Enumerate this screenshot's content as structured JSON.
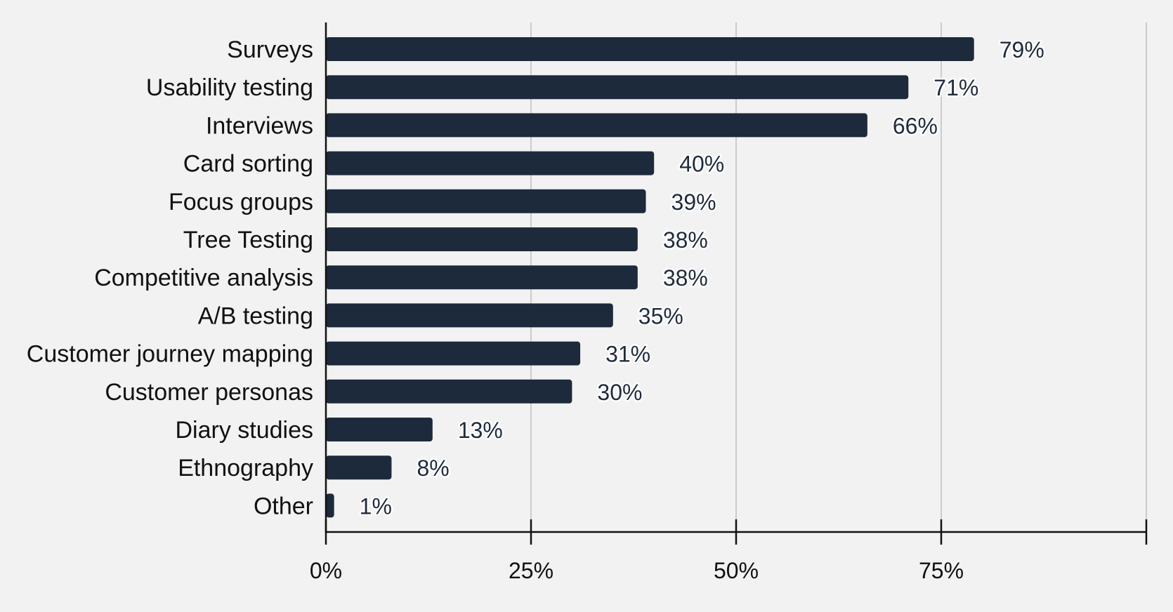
{
  "chart_data": {
    "type": "bar",
    "orientation": "horizontal",
    "categories": [
      "Surveys",
      "Usability testing",
      "Interviews",
      "Card sorting",
      "Focus groups",
      "Tree Testing",
      "Competitive analysis",
      "A/B testing",
      "Customer journey mapping",
      "Customer personas",
      "Diary studies",
      "Ethnography",
      "Other"
    ],
    "values": [
      79,
      71,
      66,
      40,
      39,
      38,
      38,
      35,
      31,
      30,
      13,
      8,
      1
    ],
    "value_labels": [
      "79%",
      "71%",
      "66%",
      "40%",
      "39%",
      "38%",
      "38%",
      "35%",
      "31%",
      "30%",
      "13%",
      "8%",
      "1%"
    ],
    "x_ticks": [
      0,
      25,
      50,
      75,
      100
    ],
    "x_tick_labels": [
      "0%",
      "25%",
      "50%",
      "75%",
      ""
    ],
    "xlim": [
      0,
      100
    ],
    "title": "",
    "xlabel": "",
    "ylabel": "",
    "grid": "vertical",
    "legend": "none",
    "bar_color": "#1c2a3c",
    "background": "#f2f2f2"
  }
}
